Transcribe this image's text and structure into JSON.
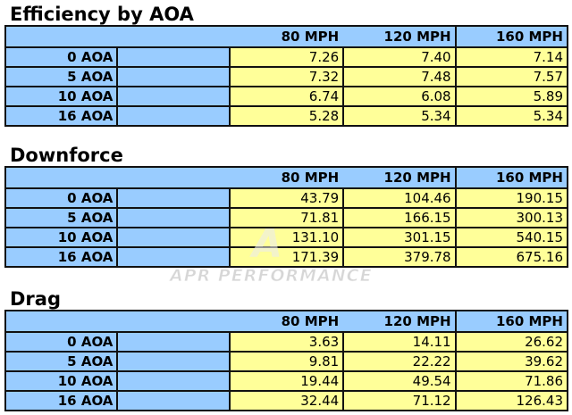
{
  "columns": [
    "80 MPH",
    "120 MPH",
    "160 MPH"
  ],
  "row_labels": [
    "0 AOA",
    "5 AOA",
    "10 AOA",
    "16 AOA"
  ],
  "tables": [
    {
      "title": "Efficiency by AOA",
      "rows": [
        [
          "7.26",
          "7.40",
          "7.14"
        ],
        [
          "7.32",
          "7.48",
          "7.57"
        ],
        [
          "6.74",
          "6.08",
          "5.89"
        ],
        [
          "5.28",
          "5.34",
          "5.34"
        ]
      ]
    },
    {
      "title": "Downforce",
      "rows": [
        [
          "43.79",
          "104.46",
          "190.15"
        ],
        [
          "71.81",
          "166.15",
          "300.13"
        ],
        [
          "131.10",
          "301.15",
          "540.15"
        ],
        [
          "171.39",
          "379.78",
          "675.16"
        ]
      ]
    },
    {
      "title": "Drag",
      "rows": [
        [
          "3.63",
          "14.11",
          "26.62"
        ],
        [
          "9.81",
          "22.22",
          "39.62"
        ],
        [
          "19.44",
          "49.54",
          "71.86"
        ],
        [
          "32.44",
          "71.12",
          "126.43"
        ]
      ]
    }
  ],
  "watermark": {
    "logo": "APR",
    "text": "APR PERFORMANCE"
  },
  "colors": {
    "label_bg": "#99ccff",
    "value_bg": "#ffff99",
    "border": "#111111"
  }
}
